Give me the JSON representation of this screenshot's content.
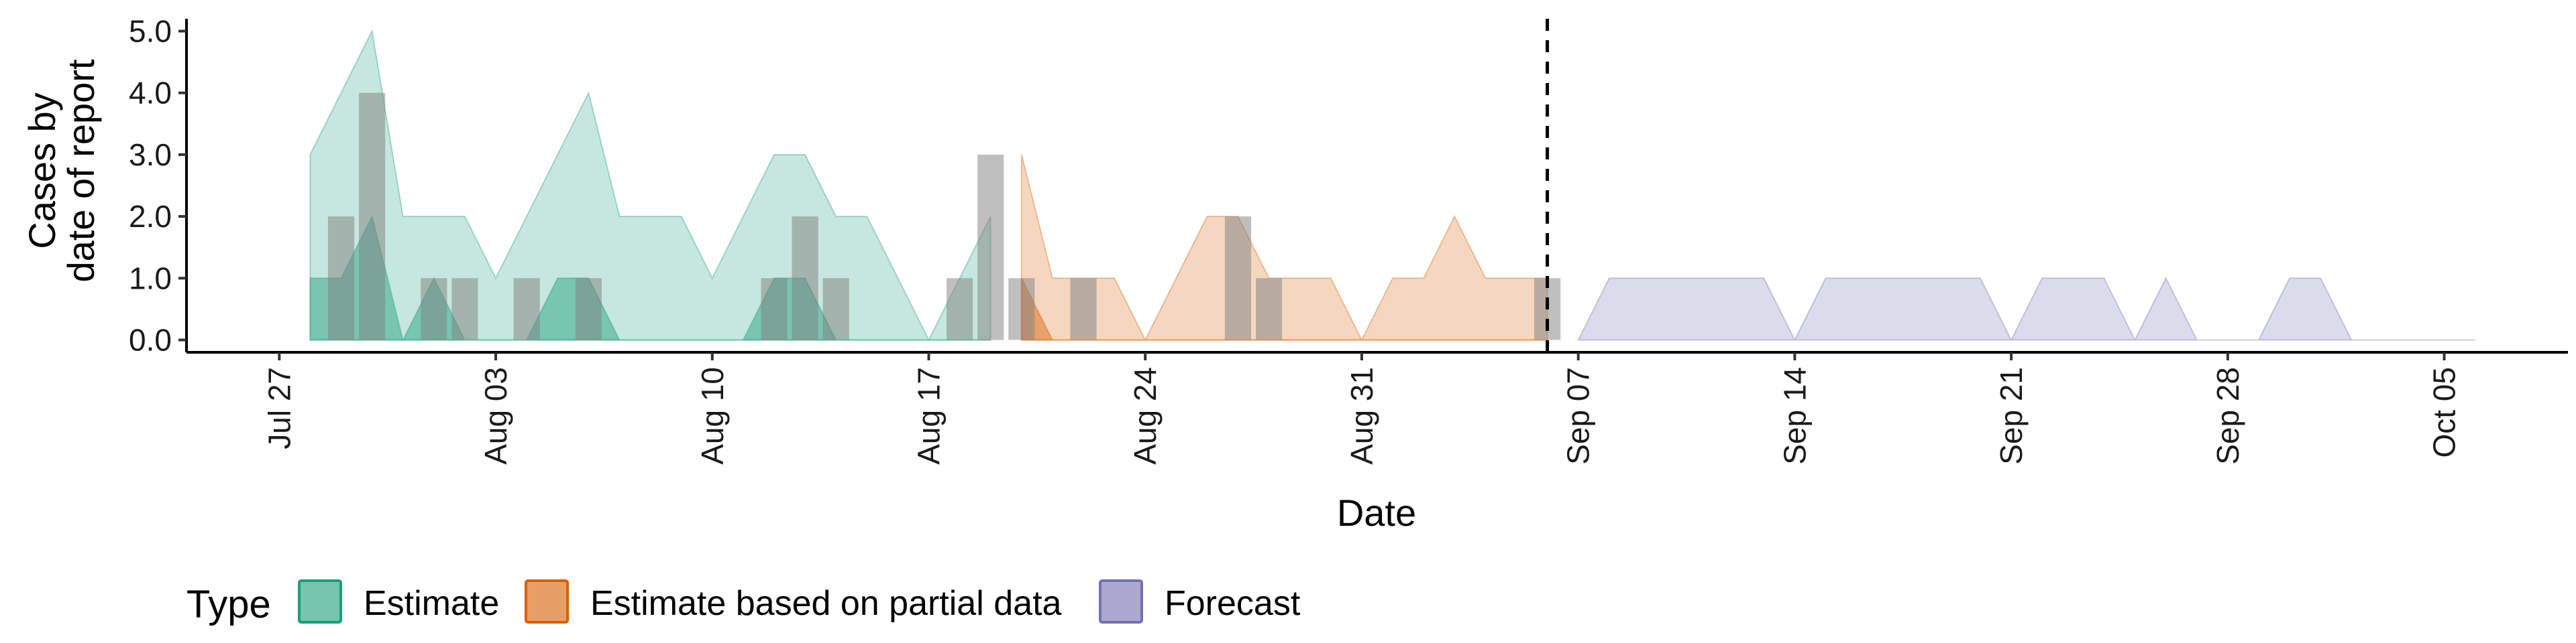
{
  "chart_data": {
    "type": "area",
    "title": "",
    "xlabel": "Date",
    "ylabel_lines": [
      "Cases by",
      "date of report"
    ],
    "x_domain": [
      "2020-07-24",
      "2020-10-09"
    ],
    "ylim": [
      -0.2,
      5.2
    ],
    "y_ticks": [
      {
        "value": 0,
        "label": "0.0"
      },
      {
        "value": 1,
        "label": "1.0"
      },
      {
        "value": 2,
        "label": "2.0"
      },
      {
        "value": 3,
        "label": "3.0"
      },
      {
        "value": 4,
        "label": "4.0"
      },
      {
        "value": 5,
        "label": "5.0"
      }
    ],
    "x_ticks": [
      {
        "date": "2020-07-27",
        "label": "Jul 27"
      },
      {
        "date": "2020-08-03",
        "label": "Aug 03"
      },
      {
        "date": "2020-08-10",
        "label": "Aug 10"
      },
      {
        "date": "2020-08-17",
        "label": "Aug 17"
      },
      {
        "date": "2020-08-24",
        "label": "Aug 24"
      },
      {
        "date": "2020-08-31",
        "label": "Aug 31"
      },
      {
        "date": "2020-09-07",
        "label": "Sep 07"
      },
      {
        "date": "2020-09-14",
        "label": "Sep 14"
      },
      {
        "date": "2020-09-21",
        "label": "Sep 21"
      },
      {
        "date": "2020-09-28",
        "label": "Sep 28"
      },
      {
        "date": "2020-10-05",
        "label": "Oct 05"
      }
    ],
    "vline_date": "2020-09-06",
    "legend": {
      "title": "Type",
      "position": "bottom",
      "items": [
        {
          "label": "Estimate",
          "fill": "#1B9E77",
          "stroke": "#1B9E77"
        },
        {
          "label": "Estimate based on partial data",
          "fill": "#D95F02",
          "stroke": "#D95F02"
        },
        {
          "label": "Forecast",
          "fill": "#7570B3",
          "stroke": "#7570B3"
        }
      ]
    },
    "colors": {
      "estimate": "#1B9E77",
      "partial": "#D95F02",
      "forecast": "#7570B3",
      "bars": "#808080",
      "vline": "#000000"
    },
    "ribbons": [
      {
        "type": "Estimate",
        "band": "outer",
        "points": [
          [
            "2020-07-28",
            0,
            3
          ],
          [
            "2020-07-29",
            0,
            4
          ],
          [
            "2020-07-30",
            0,
            5
          ],
          [
            "2020-07-31",
            0,
            2
          ],
          [
            "2020-08-01",
            0,
            2
          ],
          [
            "2020-08-02",
            0,
            2
          ],
          [
            "2020-08-03",
            0,
            1
          ],
          [
            "2020-08-04",
            0,
            2
          ],
          [
            "2020-08-05",
            0,
            3
          ],
          [
            "2020-08-06",
            0,
            4
          ],
          [
            "2020-08-07",
            0,
            2
          ],
          [
            "2020-08-08",
            0,
            2
          ],
          [
            "2020-08-09",
            0,
            2
          ],
          [
            "2020-08-10",
            0,
            1
          ],
          [
            "2020-08-11",
            0,
            2
          ],
          [
            "2020-08-12",
            0,
            3
          ],
          [
            "2020-08-13",
            0,
            3
          ],
          [
            "2020-08-14",
            0,
            2
          ],
          [
            "2020-08-15",
            0,
            2
          ],
          [
            "2020-08-16",
            0,
            1
          ],
          [
            "2020-08-17",
            0,
            0
          ],
          [
            "2020-08-18",
            0,
            1
          ],
          [
            "2020-08-19",
            0,
            2
          ]
        ]
      },
      {
        "type": "Estimate",
        "band": "inner",
        "points": [
          [
            "2020-07-28",
            0,
            1
          ],
          [
            "2020-07-29",
            0,
            1
          ],
          [
            "2020-07-30",
            0,
            2
          ],
          [
            "2020-07-31",
            0,
            0
          ],
          [
            "2020-08-01",
            0,
            1
          ],
          [
            "2020-08-02",
            0,
            0
          ],
          [
            "2020-08-03",
            0,
            0
          ],
          [
            "2020-08-04",
            0,
            0
          ],
          [
            "2020-08-05",
            0,
            1
          ],
          [
            "2020-08-06",
            0,
            1
          ],
          [
            "2020-08-07",
            0,
            0
          ],
          [
            "2020-08-08",
            0,
            0
          ],
          [
            "2020-08-09",
            0,
            0
          ],
          [
            "2020-08-10",
            0,
            0
          ],
          [
            "2020-08-11",
            0,
            0
          ],
          [
            "2020-08-12",
            0,
            1
          ],
          [
            "2020-08-13",
            0,
            1
          ],
          [
            "2020-08-14",
            0,
            0
          ],
          [
            "2020-08-15",
            0,
            0
          ],
          [
            "2020-08-16",
            0,
            0
          ],
          [
            "2020-08-17",
            0,
            0
          ],
          [
            "2020-08-18",
            0,
            0
          ],
          [
            "2020-08-19",
            0,
            0
          ]
        ]
      },
      {
        "type": "Estimate based on partial data",
        "band": "outer",
        "points": [
          [
            "2020-08-20",
            0,
            3
          ],
          [
            "2020-08-21",
            0,
            1
          ],
          [
            "2020-08-22",
            0,
            1
          ],
          [
            "2020-08-23",
            0,
            1
          ],
          [
            "2020-08-24",
            0,
            0
          ],
          [
            "2020-08-25",
            0,
            1
          ],
          [
            "2020-08-26",
            0,
            2
          ],
          [
            "2020-08-27",
            0,
            2
          ],
          [
            "2020-08-28",
            0,
            1
          ],
          [
            "2020-08-29",
            0,
            1
          ],
          [
            "2020-08-30",
            0,
            1
          ],
          [
            "2020-08-31",
            0,
            0
          ],
          [
            "2020-09-01",
            0,
            1
          ],
          [
            "2020-09-02",
            0,
            1
          ],
          [
            "2020-09-03",
            0,
            2
          ],
          [
            "2020-09-04",
            0,
            1
          ],
          [
            "2020-09-05",
            0,
            1
          ],
          [
            "2020-09-06",
            0,
            1
          ]
        ]
      },
      {
        "type": "Estimate based on partial data",
        "band": "inner",
        "points": [
          [
            "2020-08-20",
            0,
            1
          ],
          [
            "2020-08-21",
            0,
            0
          ],
          [
            "2020-08-22",
            0,
            0
          ],
          [
            "2020-08-23",
            0,
            0
          ],
          [
            "2020-08-24",
            0,
            0
          ],
          [
            "2020-08-25",
            0,
            0
          ],
          [
            "2020-08-26",
            0,
            0
          ],
          [
            "2020-08-27",
            0,
            0
          ],
          [
            "2020-08-28",
            0,
            0
          ],
          [
            "2020-08-29",
            0,
            0
          ],
          [
            "2020-08-30",
            0,
            0
          ],
          [
            "2020-08-31",
            0,
            0
          ],
          [
            "2020-09-01",
            0,
            0
          ],
          [
            "2020-09-02",
            0,
            0
          ],
          [
            "2020-09-03",
            0,
            0
          ],
          [
            "2020-09-04",
            0,
            0
          ],
          [
            "2020-09-05",
            0,
            0
          ],
          [
            "2020-09-06",
            0,
            0
          ]
        ]
      },
      {
        "type": "Forecast",
        "band": "outer",
        "points": [
          [
            "2020-09-07",
            0,
            0
          ],
          [
            "2020-09-08",
            0,
            1
          ],
          [
            "2020-09-09",
            0,
            1
          ],
          [
            "2020-09-10",
            0,
            1
          ],
          [
            "2020-09-11",
            0,
            1
          ],
          [
            "2020-09-12",
            0,
            1
          ],
          [
            "2020-09-13",
            0,
            1
          ],
          [
            "2020-09-14",
            0,
            0
          ],
          [
            "2020-09-15",
            0,
            1
          ],
          [
            "2020-09-16",
            0,
            1
          ],
          [
            "2020-09-17",
            0,
            1
          ],
          [
            "2020-09-18",
            0,
            1
          ],
          [
            "2020-09-19",
            0,
            1
          ],
          [
            "2020-09-20",
            0,
            1
          ],
          [
            "2020-09-21",
            0,
            0
          ],
          [
            "2020-09-22",
            0,
            1
          ],
          [
            "2020-09-23",
            0,
            1
          ],
          [
            "2020-09-24",
            0,
            1
          ],
          [
            "2020-09-25",
            0,
            0
          ],
          [
            "2020-09-26",
            0,
            1
          ],
          [
            "2020-09-27",
            0,
            0
          ],
          [
            "2020-09-28",
            0,
            0
          ],
          [
            "2020-09-29",
            0,
            0
          ],
          [
            "2020-09-30",
            0,
            1
          ],
          [
            "2020-10-01",
            0,
            1
          ],
          [
            "2020-10-02",
            0,
            0
          ],
          [
            "2020-10-03",
            0,
            0
          ],
          [
            "2020-10-04",
            0,
            0
          ],
          [
            "2020-10-05",
            0,
            0
          ],
          [
            "2020-10-06",
            0,
            0
          ]
        ]
      }
    ],
    "bars": [
      {
        "date": "2020-07-29",
        "value": 2
      },
      {
        "date": "2020-07-30",
        "value": 4
      },
      {
        "date": "2020-08-01",
        "value": 1
      },
      {
        "date": "2020-08-02",
        "value": 1
      },
      {
        "date": "2020-08-04",
        "value": 1
      },
      {
        "date": "2020-08-06",
        "value": 1
      },
      {
        "date": "2020-08-12",
        "value": 1
      },
      {
        "date": "2020-08-13",
        "value": 2
      },
      {
        "date": "2020-08-14",
        "value": 1
      },
      {
        "date": "2020-08-18",
        "value": 1
      },
      {
        "date": "2020-08-19",
        "value": 3
      },
      {
        "date": "2020-08-20",
        "value": 1
      },
      {
        "date": "2020-08-22",
        "value": 1
      },
      {
        "date": "2020-08-27",
        "value": 2
      },
      {
        "date": "2020-08-28",
        "value": 1
      },
      {
        "date": "2020-09-06",
        "value": 1
      }
    ]
  }
}
